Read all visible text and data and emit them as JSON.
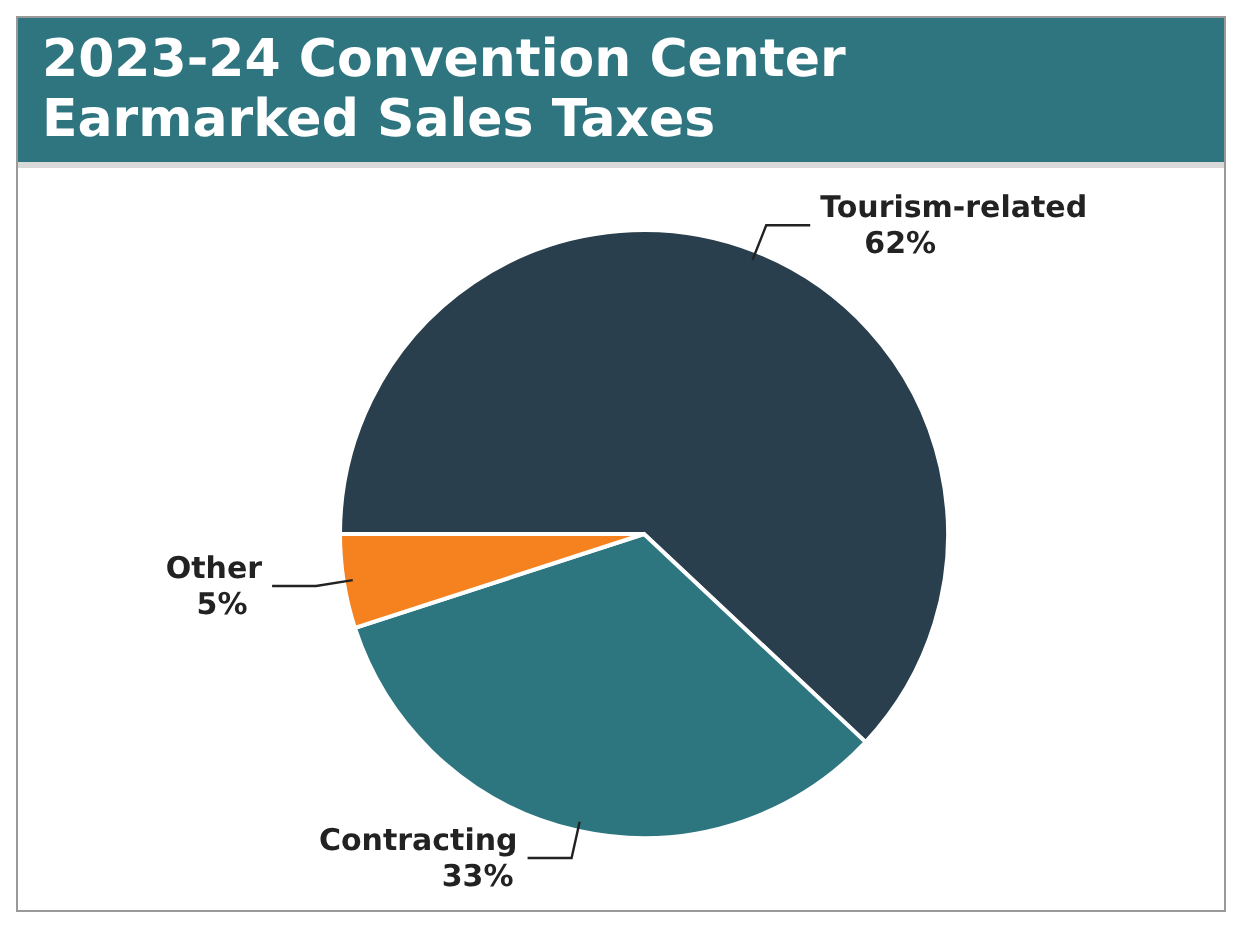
{
  "chart_data": {
    "type": "pie",
    "title": "2023-24 Convention Center\nEarmarked Sales Taxes",
    "categories": [
      "Tourism-related",
      "Contracting",
      "Other"
    ],
    "values": [
      62,
      33,
      5
    ],
    "value_labels": [
      "62%",
      "33%",
      "5%"
    ],
    "colors": [
      "#2a3f4d",
      "#2d7680",
      "#f5821f"
    ]
  }
}
